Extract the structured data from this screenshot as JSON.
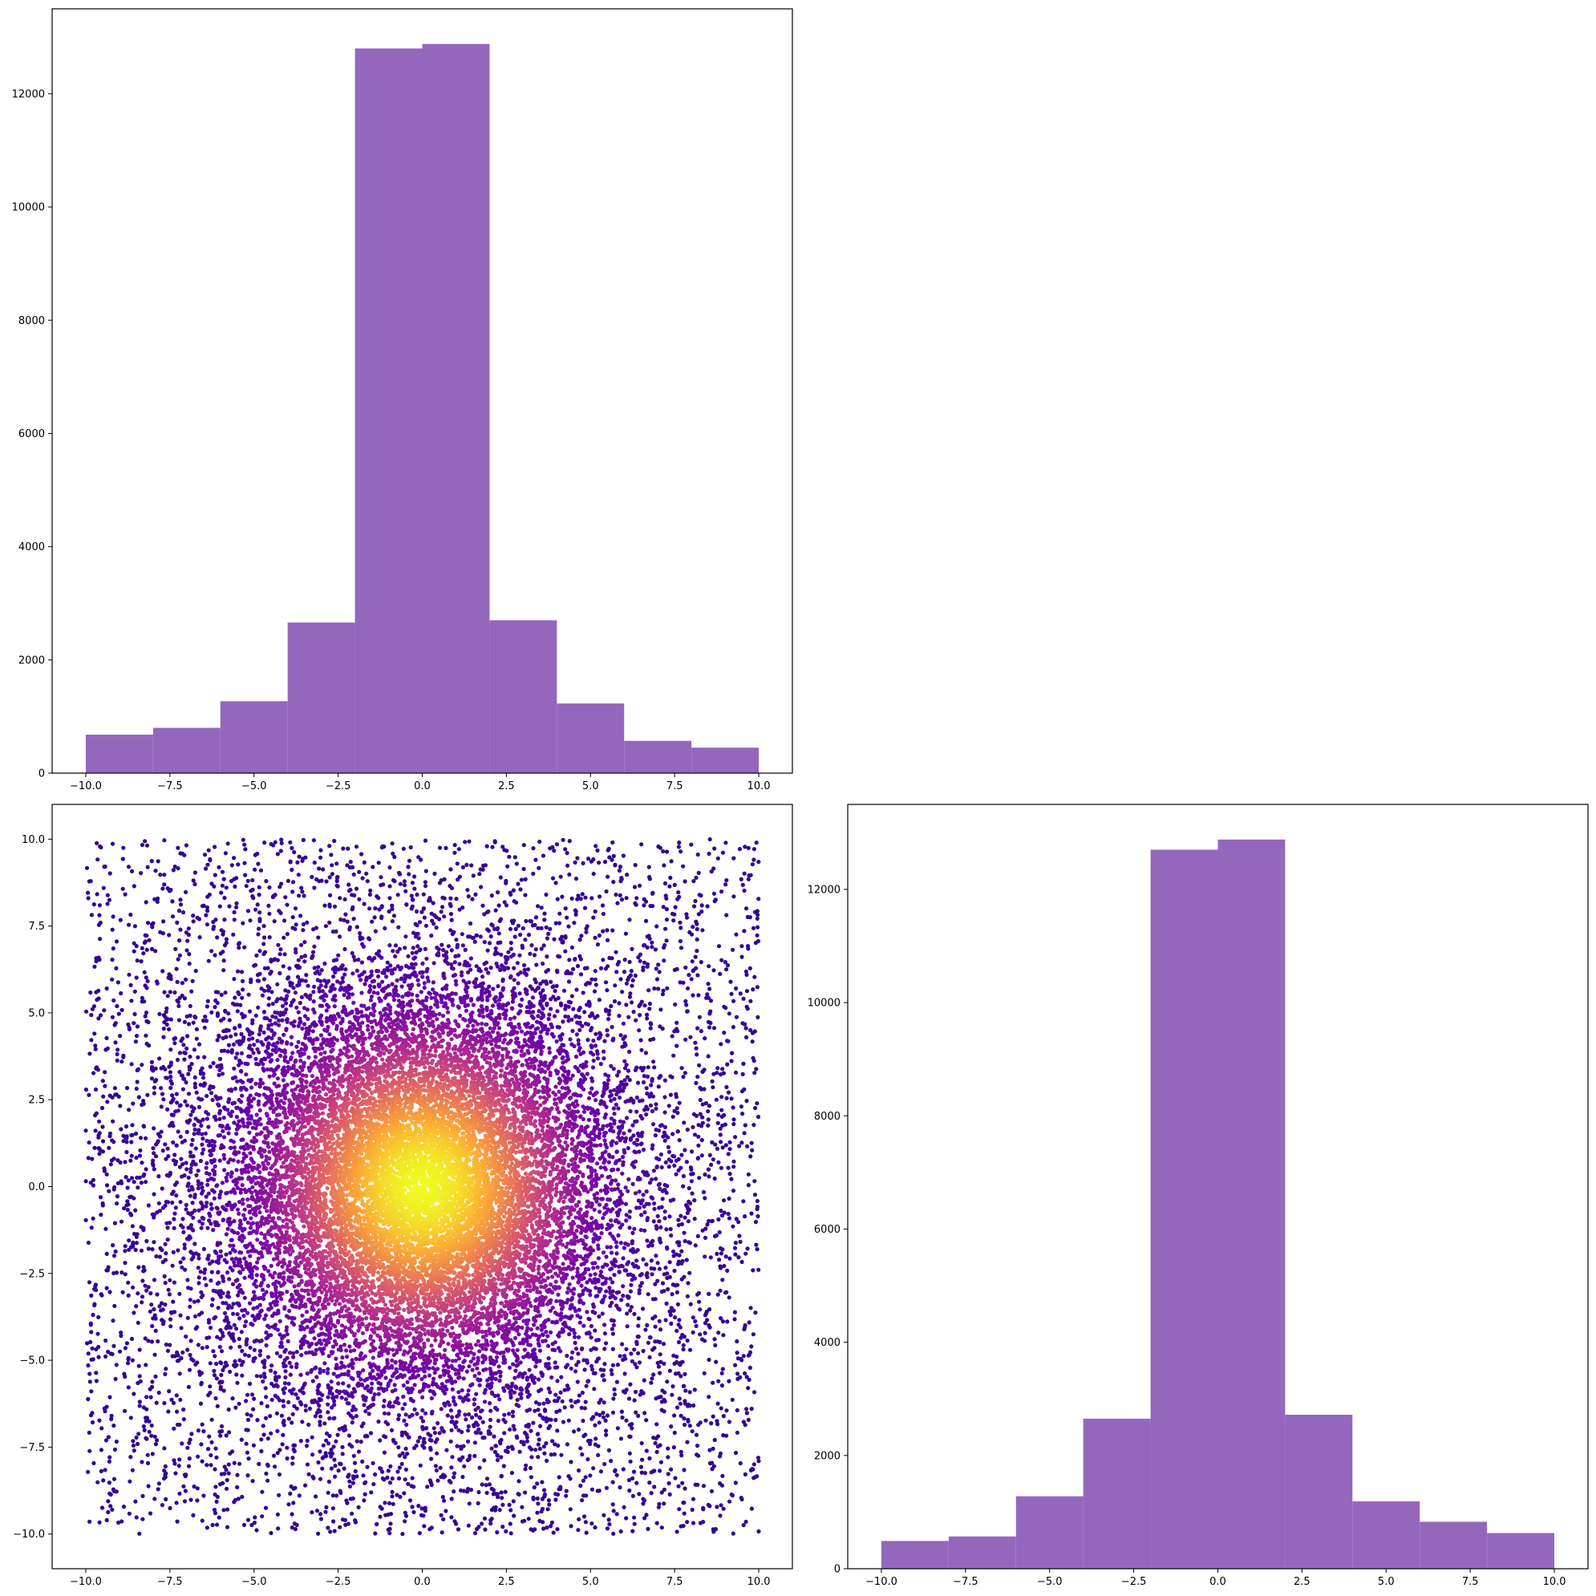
{
  "chart_data": [
    {
      "type": "bar",
      "subplot": "top-left",
      "bin_edges": [
        -10,
        -8,
        -6,
        -4,
        -2,
        0,
        2,
        4,
        6,
        8,
        10
      ],
      "values": [
        680,
        800,
        1270,
        2660,
        12800,
        12880,
        2700,
        1230,
        570,
        450
      ],
      "color": "#9467bd",
      "xlim": [
        -11,
        11
      ],
      "ylim": [
        0,
        13500
      ],
      "xticks": [
        -10,
        -7.5,
        -5,
        -2.5,
        0,
        2.5,
        5,
        7.5,
        10
      ],
      "xtick_labels": [
        "−10.0",
        "−7.5",
        "−5.0",
        "−2.5",
        "0.0",
        "2.5",
        "5.0",
        "7.5",
        "10.0"
      ],
      "yticks": [
        0,
        2000,
        4000,
        6000,
        8000,
        10000,
        12000
      ],
      "ytick_labels": [
        "0",
        "2000",
        "4000",
        "6000",
        "8000",
        "10000",
        "12000"
      ]
    },
    {
      "type": "scatter",
      "subplot": "bottom-left",
      "description_of_data": "Uniform scatter on [-10,10]x[-10,10] plus dense radial cluster centred at (0,0); color encodes density (plasma colormap)",
      "xlim": [
        -11,
        11
      ],
      "ylim": [
        -11,
        11
      ],
      "colormap": [
        "#0d0887",
        "#6a00a8",
        "#b12a90",
        "#e16462",
        "#fca636",
        "#f0f921"
      ],
      "xticks": [
        -10,
        -7.5,
        -5,
        -2.5,
        0,
        2.5,
        5,
        7.5,
        10
      ],
      "xtick_labels": [
        "−10.0",
        "−7.5",
        "−5.0",
        "−2.5",
        "0.0",
        "2.5",
        "5.0",
        "7.5",
        "10.0"
      ],
      "yticks": [
        -10,
        -7.5,
        -5,
        -2.5,
        0,
        2.5,
        5,
        7.5,
        10
      ],
      "ytick_labels": [
        "−10.0",
        "−7.5",
        "−5.0",
        "−2.5",
        "0.0",
        "2.5",
        "5.0",
        "7.5",
        "10.0"
      ],
      "uniform_points": 4500,
      "cluster_points": 14000,
      "cluster_sigma": 3.0
    },
    {
      "type": "bar",
      "subplot": "bottom-right",
      "bin_edges": [
        -10,
        -8,
        -6,
        -4,
        -2,
        0,
        2,
        4,
        6,
        8,
        10
      ],
      "values": [
        490,
        570,
        1280,
        2650,
        12700,
        12880,
        2720,
        1190,
        830,
        630
      ],
      "color": "#9467bd",
      "xlim": [
        -11,
        11
      ],
      "ylim": [
        0,
        13500
      ],
      "xticks": [
        -10,
        -7.5,
        -5,
        -2.5,
        0,
        2.5,
        5,
        7.5,
        10
      ],
      "xtick_labels": [
        "−10.0",
        "−7.5",
        "−5.0",
        "−2.5",
        "0.0",
        "2.5",
        "5.0",
        "7.5",
        "10.0"
      ],
      "yticks": [
        0,
        2000,
        4000,
        6000,
        8000,
        10000,
        12000
      ],
      "ytick_labels": [
        "0",
        "2000",
        "4000",
        "6000",
        "8000",
        "10000",
        "12000"
      ]
    }
  ]
}
